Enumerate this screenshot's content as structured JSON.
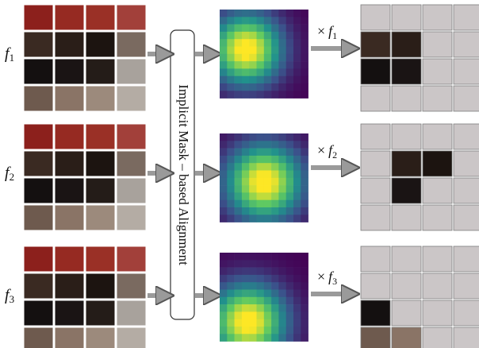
{
  "alignment_label": "Implicit Mask – based Alignment",
  "rows": [
    {
      "feature": "f",
      "index": "1",
      "operator": "×"
    },
    {
      "feature": "f",
      "index": "2",
      "operator": "×"
    },
    {
      "feature": "f",
      "index": "3",
      "operator": "×"
    }
  ]
}
